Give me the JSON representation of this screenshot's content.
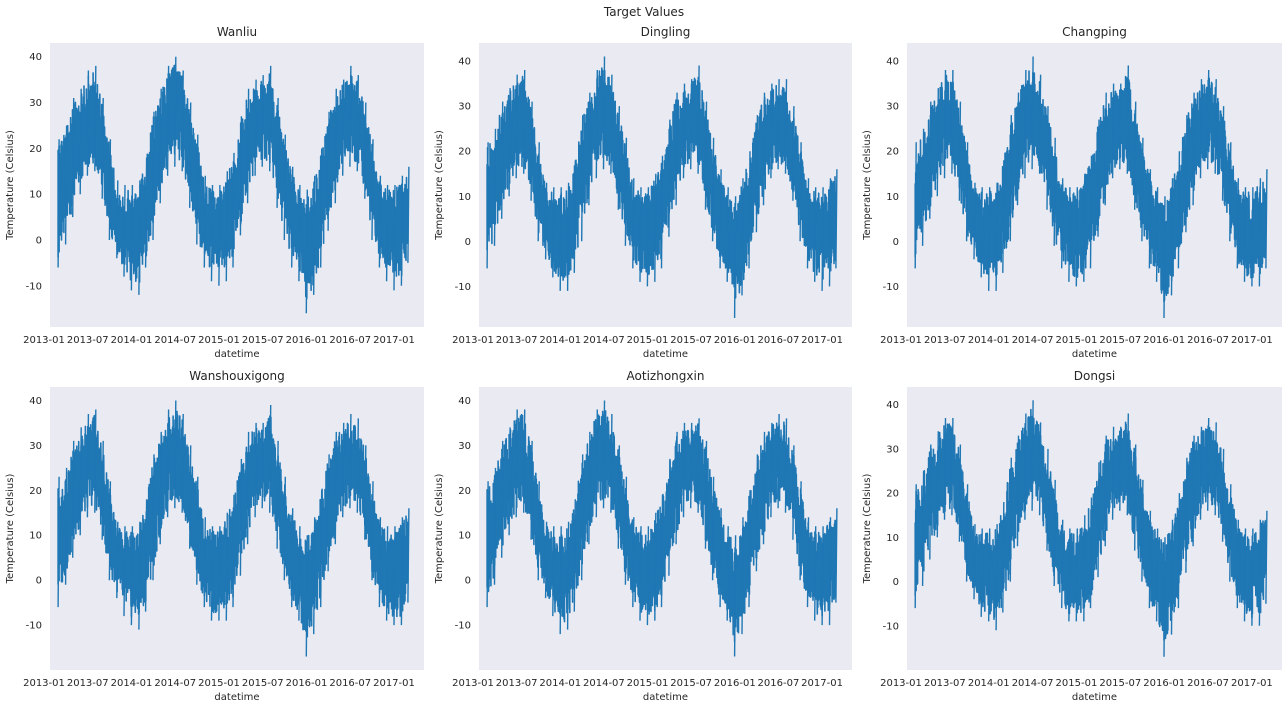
{
  "figure_title": "Target Values",
  "colors": {
    "axes_bg": "#EAEAF2",
    "line": "#1f77b4",
    "text": "#262626"
  },
  "chart_data": [
    {
      "type": "line",
      "title": "Wanliu",
      "xlabel": "datetime",
      "ylabel": "Temperature (Celsius)",
      "xticks": [
        "2013-01",
        "2013-07",
        "2014-01",
        "2014-07",
        "2015-01",
        "2015-07",
        "2016-01",
        "2016-07",
        "2017-01"
      ],
      "xlim": [
        "2013-03-01",
        "2017-02-28"
      ],
      "yticks": [
        -10,
        0,
        10,
        20,
        30,
        40
      ],
      "ylim": [
        -19,
        43
      ],
      "x": [
        "2013-03-01",
        "2013-04-01",
        "2013-05-01",
        "2013-06-01",
        "2013-07-01",
        "2013-08-01",
        "2013-09-01",
        "2013-10-01",
        "2013-11-01",
        "2013-12-01",
        "2014-01-01",
        "2014-02-01",
        "2014-03-01",
        "2014-04-01",
        "2014-05-01",
        "2014-06-01",
        "2014-07-01",
        "2014-08-01",
        "2014-09-01",
        "2014-10-01",
        "2014-11-01",
        "2014-12-01",
        "2015-01-01",
        "2015-02-01",
        "2015-03-01",
        "2015-04-01",
        "2015-05-01",
        "2015-06-01",
        "2015-07-01",
        "2015-08-01",
        "2015-09-01",
        "2015-10-01",
        "2015-11-01",
        "2015-12-01",
        "2016-01-01",
        "2016-02-01",
        "2016-03-01",
        "2016-04-01",
        "2016-05-01",
        "2016-06-01",
        "2016-07-01",
        "2016-08-01",
        "2016-09-01",
        "2016-10-01",
        "2016-11-01",
        "2016-12-01",
        "2017-01-01",
        "2017-02-01",
        "2017-02-28"
      ],
      "y_min": [
        -6,
        -1,
        5,
        10,
        14,
        15,
        9,
        0,
        -4,
        -8,
        -11,
        -12,
        -6,
        0,
        8,
        14,
        16,
        15,
        7,
        -1,
        -6,
        -9,
        -10,
        -9,
        -6,
        1,
        8,
        14,
        16,
        15,
        7,
        0,
        -6,
        -9,
        -16,
        -12,
        -6,
        2,
        8,
        14,
        16,
        15,
        9,
        0,
        -6,
        -9,
        -11,
        -10,
        -5
      ],
      "y_max": [
        22,
        25,
        31,
        33,
        37,
        38,
        31,
        22,
        13,
        12,
        12,
        13,
        18,
        28,
        33,
        38,
        40,
        37,
        30,
        23,
        14,
        12,
        12,
        15,
        19,
        27,
        33,
        35,
        36,
        38,
        31,
        23,
        16,
        12,
        11,
        14,
        20,
        28,
        33,
        35,
        38,
        36,
        30,
        22,
        14,
        12,
        12,
        14,
        16
      ]
    },
    {
      "type": "line",
      "title": "Dingling",
      "xlabel": "datetime",
      "ylabel": "Temperature (Celsius)",
      "xticks": [
        "2013-01",
        "2013-07",
        "2014-01",
        "2014-07",
        "2015-01",
        "2015-07",
        "2016-01",
        "2016-07",
        "2017-01"
      ],
      "xlim": [
        "2013-03-01",
        "2017-02-28"
      ],
      "yticks": [
        -10,
        0,
        10,
        20,
        30,
        40
      ],
      "ylim": [
        -19,
        44
      ],
      "x": [
        "2013-03-01",
        "2013-04-01",
        "2013-05-01",
        "2013-06-01",
        "2013-07-01",
        "2013-08-01",
        "2013-09-01",
        "2013-10-01",
        "2013-11-01",
        "2013-12-01",
        "2014-01-01",
        "2014-02-01",
        "2014-03-01",
        "2014-04-01",
        "2014-05-01",
        "2014-06-01",
        "2014-07-01",
        "2014-08-01",
        "2014-09-01",
        "2014-10-01",
        "2014-11-01",
        "2014-12-01",
        "2015-01-01",
        "2015-02-01",
        "2015-03-01",
        "2015-04-01",
        "2015-05-01",
        "2015-06-01",
        "2015-07-01",
        "2015-08-01",
        "2015-09-01",
        "2015-10-01",
        "2015-11-01",
        "2015-12-01",
        "2016-01-01",
        "2016-02-01",
        "2016-03-01",
        "2016-04-01",
        "2016-05-01",
        "2016-06-01",
        "2016-07-01",
        "2016-08-01",
        "2016-09-01",
        "2016-10-01",
        "2016-11-01",
        "2016-12-01",
        "2017-01-01",
        "2017-02-01",
        "2017-02-28"
      ],
      "y_min": [
        -6,
        -1,
        5,
        10,
        14,
        15,
        9,
        0,
        -4,
        -8,
        -11,
        -11,
        -7,
        0,
        8,
        14,
        16,
        15,
        7,
        -1,
        -6,
        -9,
        -10,
        -9,
        -6,
        1,
        8,
        14,
        16,
        15,
        7,
        0,
        -6,
        -9,
        -17,
        -12,
        -6,
        2,
        8,
        14,
        16,
        15,
        9,
        0,
        -6,
        -9,
        -11,
        -10,
        -6
      ],
      "y_max": [
        22,
        25,
        31,
        34,
        37,
        38,
        31,
        22,
        13,
        12,
        12,
        13,
        18,
        28,
        33,
        38,
        41,
        37,
        30,
        23,
        14,
        12,
        12,
        15,
        19,
        27,
        33,
        35,
        36,
        39,
        31,
        23,
        16,
        12,
        10,
        14,
        20,
        28,
        33,
        35,
        36,
        36,
        30,
        22,
        14,
        12,
        12,
        14,
        16
      ]
    },
    {
      "type": "line",
      "title": "Changping",
      "xlabel": "datetime",
      "ylabel": "Temperature (Celsius)",
      "xticks": [
        "2013-01",
        "2013-07",
        "2014-01",
        "2014-07",
        "2015-01",
        "2015-07",
        "2016-01",
        "2016-07",
        "2017-01"
      ],
      "xlim": [
        "2013-03-01",
        "2017-02-28"
      ],
      "yticks": [
        -10,
        0,
        10,
        20,
        30,
        40
      ],
      "ylim": [
        -19,
        44
      ],
      "x": [
        "2013-03-01",
        "2013-04-01",
        "2013-05-01",
        "2013-06-01",
        "2013-07-01",
        "2013-08-01",
        "2013-09-01",
        "2013-10-01",
        "2013-11-01",
        "2013-12-01",
        "2014-01-01",
        "2014-02-01",
        "2014-03-01",
        "2014-04-01",
        "2014-05-01",
        "2014-06-01",
        "2014-07-01",
        "2014-08-01",
        "2014-09-01",
        "2014-10-01",
        "2014-11-01",
        "2014-12-01",
        "2015-01-01",
        "2015-02-01",
        "2015-03-01",
        "2015-04-01",
        "2015-05-01",
        "2015-06-01",
        "2015-07-01",
        "2015-08-01",
        "2015-09-01",
        "2015-10-01",
        "2015-11-01",
        "2015-12-01",
        "2016-01-01",
        "2016-02-01",
        "2016-03-01",
        "2016-04-01",
        "2016-05-01",
        "2016-06-01",
        "2016-07-01",
        "2016-08-01",
        "2016-09-01",
        "2016-10-01",
        "2016-11-01",
        "2016-12-01",
        "2017-01-01",
        "2017-02-01",
        "2017-02-28"
      ],
      "y_min": [
        -6,
        -1,
        5,
        10,
        14,
        15,
        9,
        0,
        -4,
        -8,
        -11,
        -11,
        -7,
        0,
        8,
        14,
        16,
        15,
        7,
        -1,
        -6,
        -9,
        -10,
        -9,
        -6,
        1,
        8,
        14,
        16,
        15,
        7,
        0,
        -6,
        -9,
        -17,
        -12,
        -6,
        2,
        8,
        14,
        16,
        15,
        9,
        0,
        -6,
        -9,
        -10,
        -10,
        -6
      ],
      "y_max": [
        22,
        25,
        31,
        34,
        38,
        38,
        31,
        22,
        13,
        12,
        12,
        13,
        18,
        28,
        33,
        38,
        41,
        37,
        30,
        23,
        14,
        12,
        12,
        15,
        19,
        27,
        33,
        35,
        35,
        39,
        31,
        23,
        16,
        12,
        10,
        14,
        20,
        28,
        33,
        36,
        38,
        36,
        30,
        22,
        14,
        12,
        12,
        14,
        16
      ]
    },
    {
      "type": "line",
      "title": "Wanshouxigong",
      "xlabel": "datetime",
      "ylabel": "Temperature (Celsius)",
      "xticks": [
        "2013-01",
        "2013-07",
        "2014-01",
        "2014-07",
        "2015-01",
        "2015-07",
        "2016-01",
        "2016-07",
        "2017-01"
      ],
      "xlim": [
        "2013-03-01",
        "2017-02-28"
      ],
      "yticks": [
        -10,
        0,
        10,
        20,
        30,
        40
      ],
      "ylim": [
        -20,
        43
      ],
      "x": [
        "2013-03-01",
        "2013-04-01",
        "2013-05-01",
        "2013-06-01",
        "2013-07-01",
        "2013-08-01",
        "2013-09-01",
        "2013-10-01",
        "2013-11-01",
        "2013-12-01",
        "2014-01-01",
        "2014-02-01",
        "2014-03-01",
        "2014-04-01",
        "2014-05-01",
        "2014-06-01",
        "2014-07-01",
        "2014-08-01",
        "2014-09-01",
        "2014-10-01",
        "2014-11-01",
        "2014-12-01",
        "2015-01-01",
        "2015-02-01",
        "2015-03-01",
        "2015-04-01",
        "2015-05-01",
        "2015-06-01",
        "2015-07-01",
        "2015-08-01",
        "2015-09-01",
        "2015-10-01",
        "2015-11-01",
        "2015-12-01",
        "2016-01-01",
        "2016-02-01",
        "2016-03-01",
        "2016-04-01",
        "2016-05-01",
        "2016-06-01",
        "2016-07-01",
        "2016-08-01",
        "2016-09-01",
        "2016-10-01",
        "2016-11-01",
        "2016-12-01",
        "2017-01-01",
        "2017-02-01",
        "2017-02-28"
      ],
      "y_min": [
        -6,
        -1,
        5,
        10,
        14,
        15,
        9,
        0,
        -4,
        -8,
        -10,
        -11,
        -7,
        0,
        8,
        14,
        16,
        15,
        7,
        -1,
        -6,
        -9,
        -9,
        -9,
        -6,
        1,
        8,
        14,
        16,
        15,
        7,
        0,
        -6,
        -9,
        -17,
        -12,
        -6,
        2,
        8,
        14,
        16,
        15,
        9,
        0,
        -6,
        -9,
        -10,
        -10,
        -5
      ],
      "y_max": [
        23,
        25,
        31,
        34,
        37,
        38,
        31,
        22,
        13,
        12,
        12,
        13,
        18,
        28,
        33,
        38,
        40,
        37,
        30,
        23,
        14,
        12,
        12,
        15,
        19,
        27,
        33,
        35,
        35,
        39,
        31,
        23,
        16,
        12,
        10,
        14,
        20,
        28,
        33,
        35,
        37,
        36,
        30,
        22,
        14,
        12,
        12,
        14,
        16
      ]
    },
    {
      "type": "line",
      "title": "Aotizhongxin",
      "xlabel": "datetime",
      "ylabel": "Temperature (Celsius)",
      "xticks": [
        "2013-01",
        "2013-07",
        "2014-01",
        "2014-07",
        "2015-01",
        "2015-07",
        "2016-01",
        "2016-07",
        "2017-01"
      ],
      "xlim": [
        "2013-03-01",
        "2017-02-28"
      ],
      "yticks": [
        -10,
        0,
        10,
        20,
        30,
        40
      ],
      "ylim": [
        -20,
        43
      ],
      "x": [
        "2013-03-01",
        "2013-04-01",
        "2013-05-01",
        "2013-06-01",
        "2013-07-01",
        "2013-08-01",
        "2013-09-01",
        "2013-10-01",
        "2013-11-01",
        "2013-12-01",
        "2014-01-01",
        "2014-02-01",
        "2014-03-01",
        "2014-04-01",
        "2014-05-01",
        "2014-06-01",
        "2014-07-01",
        "2014-08-01",
        "2014-09-01",
        "2014-10-01",
        "2014-11-01",
        "2014-12-01",
        "2015-01-01",
        "2015-02-01",
        "2015-03-01",
        "2015-04-01",
        "2015-05-01",
        "2015-06-01",
        "2015-07-01",
        "2015-08-01",
        "2015-09-01",
        "2015-10-01",
        "2015-11-01",
        "2015-12-01",
        "2016-01-01",
        "2016-02-01",
        "2016-03-01",
        "2016-04-01",
        "2016-05-01",
        "2016-06-01",
        "2016-07-01",
        "2016-08-01",
        "2016-09-01",
        "2016-10-01",
        "2016-11-01",
        "2016-12-01",
        "2017-01-01",
        "2017-02-01",
        "2017-02-28"
      ],
      "y_min": [
        -6,
        -1,
        5,
        10,
        14,
        15,
        9,
        0,
        -4,
        -8,
        -12,
        -11,
        -7,
        0,
        8,
        14,
        16,
        15,
        7,
        -1,
        -6,
        -9,
        -10,
        -9,
        -6,
        1,
        8,
        14,
        16,
        15,
        7,
        0,
        -6,
        -9,
        -17,
        -12,
        -6,
        2,
        8,
        14,
        16,
        15,
        9,
        0,
        -6,
        -9,
        -10,
        -10,
        -5
      ],
      "y_max": [
        22,
        25,
        31,
        34,
        38,
        38,
        31,
        22,
        13,
        12,
        12,
        13,
        18,
        28,
        33,
        38,
        40,
        37,
        30,
        23,
        14,
        12,
        12,
        15,
        19,
        27,
        33,
        35,
        35,
        36,
        31,
        23,
        16,
        12,
        10,
        14,
        20,
        28,
        33,
        35,
        37,
        36,
        30,
        22,
        14,
        12,
        12,
        14,
        16
      ]
    },
    {
      "type": "line",
      "title": "Dongsi",
      "xlabel": "datetime",
      "ylabel": "Temperature (Celsius)",
      "xticks": [
        "2013-01",
        "2013-07",
        "2014-01",
        "2014-07",
        "2015-01",
        "2015-07",
        "2016-01",
        "2016-07",
        "2017-01"
      ],
      "xlim": [
        "2013-03-01",
        "2017-02-28"
      ],
      "yticks": [
        -10,
        0,
        10,
        20,
        30,
        40
      ],
      "ylim": [
        -20,
        44
      ],
      "x": [
        "2013-03-01",
        "2013-04-01",
        "2013-05-01",
        "2013-06-01",
        "2013-07-01",
        "2013-08-01",
        "2013-09-01",
        "2013-10-01",
        "2013-11-01",
        "2013-12-01",
        "2014-01-01",
        "2014-02-01",
        "2014-03-01",
        "2014-04-01",
        "2014-05-01",
        "2014-06-01",
        "2014-07-01",
        "2014-08-01",
        "2014-09-01",
        "2014-10-01",
        "2014-11-01",
        "2014-12-01",
        "2015-01-01",
        "2015-02-01",
        "2015-03-01",
        "2015-04-01",
        "2015-05-01",
        "2015-06-01",
        "2015-07-01",
        "2015-08-01",
        "2015-09-01",
        "2015-10-01",
        "2015-11-01",
        "2015-12-01",
        "2016-01-01",
        "2016-02-01",
        "2016-03-01",
        "2016-04-01",
        "2016-05-01",
        "2016-06-01",
        "2016-07-01",
        "2016-08-01",
        "2016-09-01",
        "2016-10-01",
        "2016-11-01",
        "2016-12-01",
        "2017-01-01",
        "2017-02-01",
        "2017-02-28"
      ],
      "y_min": [
        -6,
        -1,
        5,
        10,
        14,
        15,
        9,
        0,
        -4,
        -8,
        -9,
        -11,
        -7,
        0,
        8,
        14,
        16,
        15,
        7,
        -1,
        -6,
        -9,
        -9,
        -9,
        -6,
        1,
        8,
        14,
        16,
        15,
        7,
        0,
        -6,
        -9,
        -17,
        -12,
        -6,
        2,
        8,
        14,
        16,
        15,
        9,
        0,
        -6,
        -9,
        -10,
        -10,
        -5
      ],
      "y_max": [
        22,
        25,
        31,
        34,
        37,
        37,
        31,
        22,
        13,
        12,
        12,
        13,
        18,
        28,
        33,
        38,
        41,
        36,
        30,
        23,
        14,
        12,
        12,
        15,
        19,
        27,
        33,
        35,
        35,
        38,
        31,
        23,
        16,
        12,
        10,
        14,
        20,
        28,
        33,
        35,
        37,
        36,
        30,
        22,
        14,
        12,
        12,
        14,
        16
      ]
    }
  ]
}
